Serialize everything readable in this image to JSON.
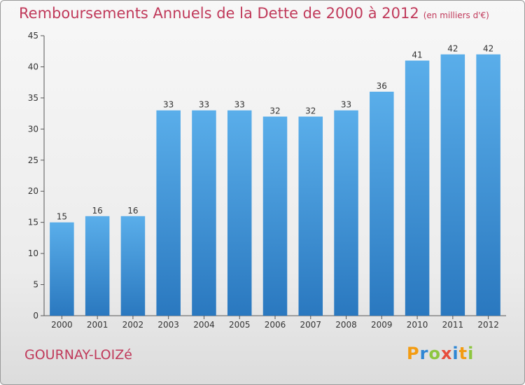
{
  "header": {
    "title": "Remboursements Annuels de la Dette de 2000 à 2012",
    "unit": "(en milliers d'€)"
  },
  "footer": {
    "commune": "GOURNAY-LOIZé",
    "logo_letters": [
      "P",
      "r",
      "o",
      "x",
      "i",
      "t",
      "i"
    ],
    "logo_colors": [
      "#f39c12",
      "#2e86d4",
      "#8dc63f",
      "#e74c3c",
      "#2e86d4",
      "#f39c12",
      "#8dc63f"
    ]
  },
  "chart_data": {
    "type": "bar",
    "title": "Remboursements Annuels de la Dette de 2000 à 2012",
    "subtitle": "(en milliers d'€)",
    "xlabel": "",
    "ylabel": "",
    "categories": [
      "2000",
      "2001",
      "2002",
      "2003",
      "2004",
      "2005",
      "2006",
      "2007",
      "2008",
      "2009",
      "2010",
      "2011",
      "2012"
    ],
    "values": [
      15,
      16,
      16,
      33,
      33,
      33,
      32,
      32,
      33,
      36,
      41,
      42,
      42
    ],
    "ylim": [
      0,
      45
    ],
    "yticks": [
      0,
      5,
      10,
      15,
      20,
      25,
      30,
      35,
      40,
      45
    ],
    "grid": false,
    "bar_color_top": "#5aaeea",
    "bar_color_bottom": "#2a78bf"
  }
}
